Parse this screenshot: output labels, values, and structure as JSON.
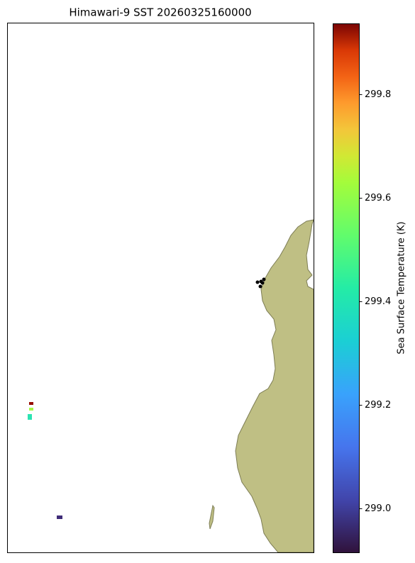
{
  "chart_data": {
    "type": "map",
    "title": "Himawari-9 SST 20260325160000",
    "colorbar_label": "Sea Surface Temperature (K)",
    "clim": [
      298.915,
      299.937
    ],
    "colorbar_ticks": [
      299.0,
      299.2,
      299.4,
      299.6,
      299.8
    ],
    "colormap": "turbo",
    "values": [
      299.9,
      299.45,
      299.25,
      298.95
    ]
  }
}
